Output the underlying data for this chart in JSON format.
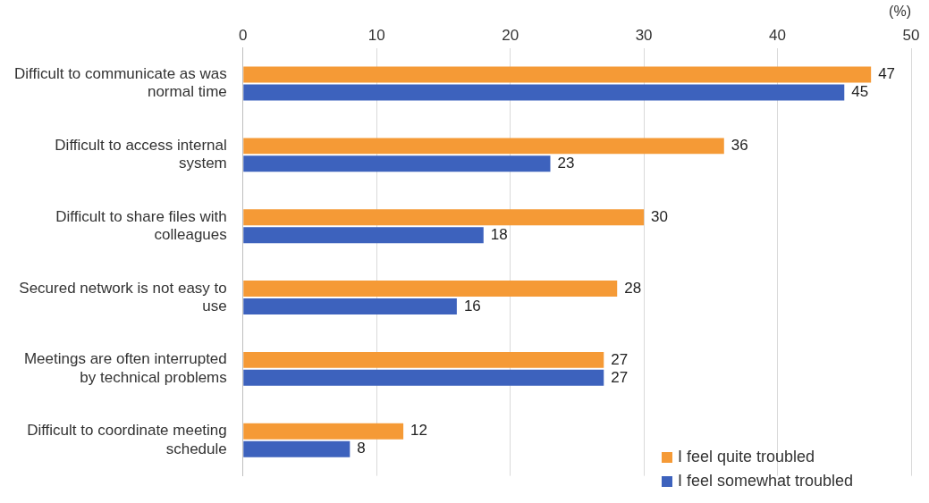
{
  "chart_data": {
    "type": "bar",
    "orientation": "horizontal",
    "xlabel": "(%)",
    "categories": [
      "Difficult to communicate as was normal time",
      "Difficult to access internal system",
      "Difficult to share files with colleagues",
      "Secured network is not easy to use",
      "Meetings are often interrupted by technical problems",
      "Difficult to coordinate meeting schedule"
    ],
    "series": [
      {
        "name": "I feel quite troubled",
        "color": "#f59a36",
        "values": [
          47,
          36,
          30,
          28,
          27,
          12
        ]
      },
      {
        "name": "I feel somewhat troubled",
        "color": "#3d62bd",
        "values": [
          45,
          23,
          18,
          16,
          27,
          8
        ]
      }
    ],
    "xlim": [
      0,
      50
    ],
    "xticks": [
      0,
      10,
      20,
      30,
      40,
      50
    ],
    "grid": "x",
    "legend": "bottom right",
    "data_labels": true
  }
}
